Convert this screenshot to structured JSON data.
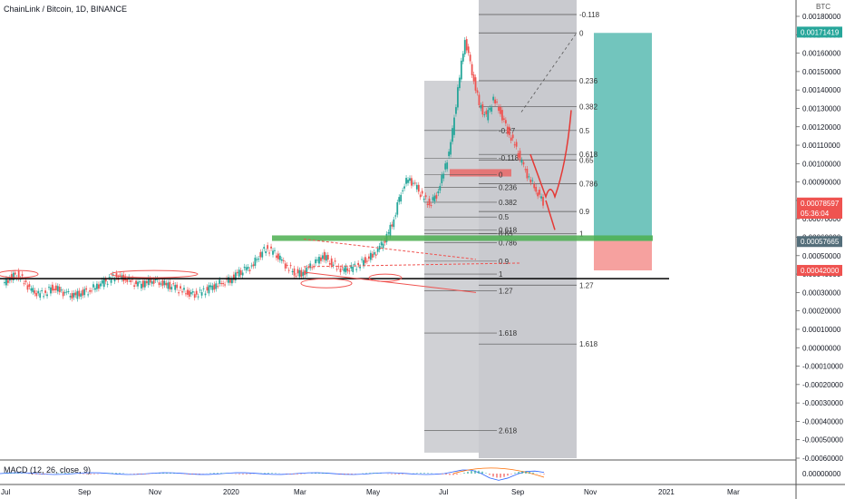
{
  "header": {
    "title": "ChainLink / Bitcoin, 1D, BINANCE",
    "currency": "BTC"
  },
  "macd": {
    "label": "MACD (12, 26, close, 9)",
    "axis_value": "0.00000000"
  },
  "chart_data": {
    "type": "candlestick",
    "title": "ChainLink / Bitcoin, 1D, BINANCE",
    "y_unit": "BTC",
    "ylim": [
      -0.0006,
      0.0018
    ],
    "x_ticks": [
      "Jul",
      "Sep",
      "Nov",
      "2020",
      "Mar",
      "May",
      "Jul",
      "Sep",
      "Nov",
      "2021",
      "Mar"
    ],
    "y_ticks": [
      "0.00180000",
      "0.00170000",
      "0.00160000",
      "0.00150000",
      "0.00140000",
      "0.00130000",
      "0.00120000",
      "0.00110000",
      "0.00100000",
      "0.00090000",
      "0.00080000",
      "0.00070000",
      "0.00060000",
      "0.00050000",
      "0.00040000",
      "0.00030000",
      "0.00020000",
      "0.00010000",
      "0.00000000",
      "-0.00010000",
      "-0.00020000",
      "-0.00030000",
      "-0.00040000",
      "-0.00050000",
      "-0.00060000"
    ],
    "price_labels": [
      {
        "text": "0.00171419",
        "value": 0.00171419,
        "color": "#26a69a"
      },
      {
        "text": "0.00078597",
        "value": 0.00078597,
        "color": "#ef5350"
      },
      {
        "text": "05:36:04",
        "value": 0.00073,
        "color": "#ef5350"
      },
      {
        "text": "0.00057665",
        "value": 0.00057665,
        "color": "#546e7a"
      },
      {
        "text": "0.00042000",
        "value": 0.00042,
        "color": "#ef5350"
      }
    ],
    "fib_outer": {
      "levels": [
        {
          "label": "-0.118",
          "value": 0.00181
        },
        {
          "label": "0",
          "value": 0.00171
        },
        {
          "label": "0.236",
          "value": 0.00145
        },
        {
          "label": "0.382",
          "value": 0.00131
        },
        {
          "label": "0.5",
          "value": 0.00118
        },
        {
          "label": "0.618",
          "value": 0.00105
        },
        {
          "label": "0.65",
          "value": 0.00102
        },
        {
          "label": "0.786",
          "value": 0.00089
        },
        {
          "label": "0.9",
          "value": 0.00074
        },
        {
          "label": "1",
          "value": 0.00062
        },
        {
          "label": "1.27",
          "value": 0.00034
        },
        {
          "label": "1.618",
          "value": 2e-05
        }
      ]
    },
    "fib_inner": {
      "levels": [
        {
          "label": "-0.27",
          "value": 0.00118
        },
        {
          "label": "-0.118",
          "value": 0.00103
        },
        {
          "label": "0",
          "value": 0.00094
        },
        {
          "label": "0.236",
          "value": 0.00087
        },
        {
          "label": "0.382",
          "value": 0.00079
        },
        {
          "label": "0.5",
          "value": 0.00071
        },
        {
          "label": "0.618",
          "value": 0.00064
        },
        {
          "label": "0.65",
          "value": 0.00062
        },
        {
          "label": "0.786",
          "value": 0.00057
        },
        {
          "label": "0.9",
          "value": 0.00047
        },
        {
          "label": "1",
          "value": 0.0004
        },
        {
          "label": "1.27",
          "value": 0.00031
        },
        {
          "label": "1.618",
          "value": 8e-05
        },
        {
          "label": "2.618",
          "value": -0.00045
        }
      ]
    },
    "support_line": 0.000375,
    "green_zone": [
      0.00058,
      0.00061
    ],
    "target_zone": [
      0.00058,
      0.00171
    ],
    "stop_zone": [
      0.00042,
      0.00058
    ],
    "red_resistance_box": [
      0.00093,
      0.00097
    ],
    "series_close": [
      0.00034,
      0.00038,
      0.0004,
      0.00036,
      0.00031,
      0.00029,
      0.0003,
      0.00033,
      0.00031,
      0.00029,
      0.00028,
      0.0003,
      0.00031,
      0.00033,
      0.00035,
      0.00037,
      0.00039,
      0.00038,
      0.00036,
      0.00034,
      0.00035,
      0.00037,
      0.00036,
      0.00034,
      0.00033,
      0.00031,
      0.0003,
      0.00029,
      0.0003,
      0.00032,
      0.00034,
      0.00036,
      0.00037,
      0.0004,
      0.00042,
      0.00044,
      0.0005,
      0.00054,
      0.00052,
      0.00048,
      0.00044,
      0.00041,
      0.0004,
      0.00043,
      0.00046,
      0.0005,
      0.00047,
      0.00044,
      0.00042,
      0.00043,
      0.00045,
      0.00048,
      0.0005,
      0.00054,
      0.0006,
      0.0007,
      0.00085,
      0.00092,
      0.00088,
      0.00082,
      0.00078,
      0.00083,
      0.00095,
      0.0011,
      0.0014,
      0.00168,
      0.0015,
      0.00132,
      0.00125,
      0.00135,
      0.00128,
      0.00118,
      0.0011,
      0.001,
      0.00092,
      0.00086,
      0.00079
    ]
  }
}
